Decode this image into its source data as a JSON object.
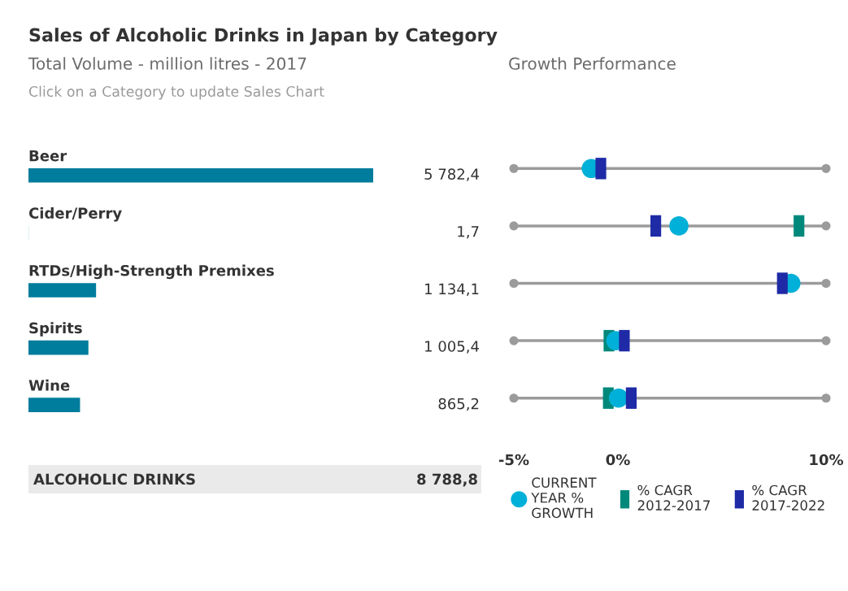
{
  "chart_data": [
    {
      "type": "bar",
      "orientation": "horizontal",
      "title": "Sales of Alcoholic Drinks in Japan by Category",
      "subtitle": "Total Volume - million litres - 2017",
      "categories": [
        "Beer",
        "Cider/Perry",
        "RTDs/High-Strength Premixes",
        "Spirits",
        "Wine"
      ],
      "values": [
        5782.4,
        1.7,
        1134.1,
        1005.4,
        865.2
      ],
      "color": "#007c9c",
      "value_labels": [
        "5 782,4",
        "1,7",
        "1 134,1",
        "1 005,4",
        "865,2"
      ],
      "tick_labels": "y",
      "annotations": [
        "Click on a Category to update Sales Chart",
        "ALCOHOLIC DRINKS",
        "8 788,8"
      ]
    },
    {
      "type": "scatter",
      "orientation": "horizontal",
      "title": "Growth Performance",
      "series": [
        {
          "name": "% CAGR 2012-2017",
          "color": "#00897b",
          "marker": "square",
          "values": [
            null,
            8.7,
            null,
            -0.43,
            -0.46
          ]
        },
        {
          "name": "CURRENT YEAR % GROWTH",
          "color": "#00b0d8",
          "marker": "circle",
          "values": [
            -1.28,
            2.93,
            8.31,
            -0.1,
            0.03
          ]
        },
        {
          "name": "% CAGR 2017-2022",
          "color": "#1f2aa6",
          "marker": "square",
          "values": [
            -0.82,
            1.82,
            7.9,
            0.31,
            0.64
          ]
        }
      ],
      "xlim": [
        -5,
        10
      ],
      "xticks": [
        {
          "value": -5,
          "label": "-5%"
        },
        {
          "value": 0,
          "label": "0%"
        },
        {
          "value": 10,
          "label": "10%"
        }
      ],
      "grid": "y",
      "legend": "bottom",
      "tick_labels": "x"
    }
  ]
}
